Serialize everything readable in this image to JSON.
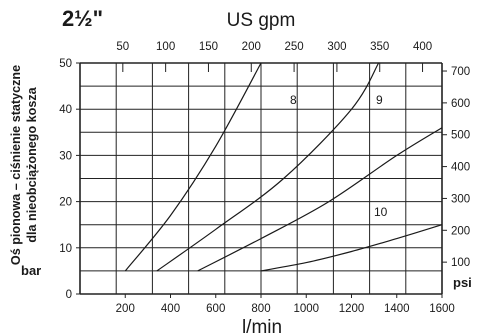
{
  "chart_data": {
    "type": "line",
    "title": "2½\"",
    "ylabel": "Oś pionowa – ciśnienie statyczne dla nieobciążonego kosza",
    "xlabel_bottom": "l/min",
    "xlabel_top": "US gpm",
    "unit_left": "bar",
    "unit_right": "psi",
    "x_range": [
      0,
      1600
    ],
    "y_range": [
      0,
      50
    ],
    "bottom_ticks": [
      "200",
      "400",
      "600",
      "800",
      "1000",
      "1200",
      "1400",
      "1600"
    ],
    "top_ticks": [
      "50",
      "100",
      "150",
      "200",
      "250",
      "300",
      "350",
      "400"
    ],
    "left_ticks": [
      "0",
      "10",
      "20",
      "30",
      "40",
      "50"
    ],
    "right_ticks": [
      "100",
      "200",
      "300",
      "400",
      "500",
      "600",
      "700"
    ],
    "grid": true,
    "series": [
      {
        "name": "8",
        "x": [
          200,
          400,
          600,
          800
        ],
        "y": [
          5,
          17,
          32,
          50
        ]
      },
      {
        "name": "9",
        "x": [
          340,
          600,
          900,
          1200,
          1320
        ],
        "y": [
          5,
          14,
          25,
          40,
          50
        ]
      },
      {
        "name": "10",
        "x": [
          520,
          800,
          1100,
          1400,
          1600
        ],
        "y": [
          5,
          12,
          20,
          30,
          36
        ]
      },
      {
        "name": "",
        "x": [
          800,
          1000,
          1200,
          1400,
          1600
        ],
        "y": [
          5,
          6.8,
          9.2,
          12,
          15
        ]
      }
    ]
  }
}
